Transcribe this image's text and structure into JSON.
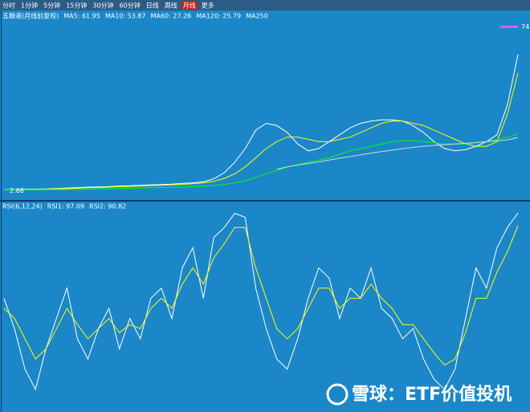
{
  "toolbar": [
    "分时",
    "1分钟",
    "5分钟",
    "15分钟",
    "30分钟",
    "60分钟",
    "日线",
    "周线",
    "月线",
    "更多"
  ],
  "active_tab": 8,
  "watermark": "雪球：ETF价值投机",
  "chart_data": [
    {
      "type": "line",
      "title": "五粮液(月线前复权)",
      "ylim": [
        0,
        78
      ],
      "high_label": 74,
      "low_label": 2.66,
      "legend_extra": {
        "name": "MA250",
        "color": "#3050ff"
      },
      "series": [
        {
          "name": "MA5: 61.95",
          "color": "#ffffff",
          "values": [
            3,
            3.1,
            3.3,
            3.3,
            3.4,
            3.6,
            3.8,
            4,
            4.2,
            4.3,
            4.4,
            4.7,
            4.8,
            5,
            5.2,
            5.3,
            5.5,
            5.8,
            6.1,
            6.5,
            7.8,
            10.5,
            15,
            21,
            29,
            32,
            31,
            28,
            23,
            20,
            21,
            24,
            27,
            30,
            32,
            33,
            33.5,
            33.5,
            33,
            31,
            28,
            24,
            21,
            20,
            20.5,
            22,
            24,
            27,
            40,
            61.95
          ]
        },
        {
          "name": "MA10: 53.87",
          "color": "#ffff00",
          "values": [
            3,
            3,
            3.1,
            3.2,
            3.3,
            3.4,
            3.5,
            3.7,
            3.9,
            4,
            4.2,
            4.4,
            4.5,
            4.7,
            4.9,
            5,
            5.2,
            5.4,
            5.7,
            6,
            6.7,
            8,
            10,
            13,
            17,
            21,
            24,
            26,
            26,
            25,
            24,
            24,
            25,
            26,
            28,
            30,
            32,
            33,
            33,
            32,
            31,
            29,
            27,
            25,
            23,
            22,
            22,
            24,
            36,
            53.87
          ]
        },
        {
          "name": "MA60: 27.26",
          "color": "#00ff00",
          "values": [
            3,
            3,
            3,
            3,
            3.1,
            3.1,
            3.2,
            3.2,
            3.3,
            3.4,
            3.5,
            3.6,
            3.7,
            3.8,
            3.9,
            4,
            4.1,
            4.2,
            4.4,
            4.6,
            4.9,
            5.3,
            6,
            7,
            8.5,
            10,
            11.5,
            13,
            14,
            15,
            16,
            17,
            18.5,
            20,
            21,
            22,
            23,
            24,
            24.5,
            24.5,
            24,
            23.5,
            23,
            23,
            23,
            23.5,
            24,
            25,
            26,
            27.26
          ]
        },
        {
          "name": "MA120: 25.79",
          "color": "#d8d8d8",
          "values": [
            null,
            null,
            null,
            null,
            null,
            null,
            null,
            null,
            null,
            null,
            null,
            null,
            null,
            null,
            null,
            null,
            null,
            null,
            null,
            null,
            null,
            null,
            null,
            null,
            null,
            null,
            12,
            13,
            13.8,
            14.5,
            15.2,
            16,
            16.8,
            17.5,
            18.3,
            19,
            19.7,
            20.3,
            21,
            21.5,
            22,
            22.4,
            22.7,
            23,
            23.3,
            23.6,
            24,
            24.4,
            24.8,
            25.79
          ]
        }
      ]
    },
    {
      "type": "line",
      "title": "RSI(6,12,24)",
      "ylim": [
        0,
        100
      ],
      "series": [
        {
          "name": "RSI1: 97.09",
          "color": "#ffffff",
          "values": [
            55,
            40,
            20,
            10,
            30,
            45,
            60,
            35,
            25,
            40,
            50,
            30,
            45,
            35,
            55,
            60,
            45,
            70,
            80,
            55,
            85,
            90,
            97,
            95,
            60,
            40,
            25,
            20,
            35,
            55,
            70,
            65,
            45,
            60,
            55,
            70,
            50,
            45,
            35,
            40,
            25,
            15,
            10,
            20,
            45,
            70,
            60,
            80,
            90,
            97.09
          ]
        },
        {
          "name": "RSI2: 90.82",
          "color": "#ffff00",
          "values": [
            50,
            45,
            35,
            25,
            30,
            40,
            50,
            42,
            35,
            40,
            45,
            38,
            42,
            40,
            50,
            55,
            50,
            62,
            70,
            62,
            75,
            82,
            90,
            90,
            70,
            55,
            40,
            35,
            40,
            50,
            60,
            60,
            50,
            55,
            55,
            62,
            55,
            50,
            42,
            42,
            35,
            28,
            22,
            25,
            38,
            55,
            55,
            68,
            78,
            90.82
          ]
        }
      ]
    }
  ]
}
